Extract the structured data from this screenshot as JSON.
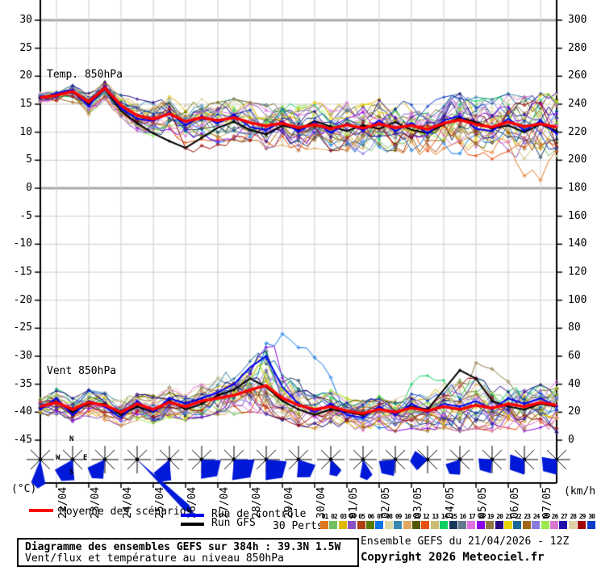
{
  "legend": {
    "mean_label": "Moyenne des scénarios",
    "control_label": "Run de contrôle",
    "gfs_label": "Run GFS",
    "perts_label": "30 Perts.",
    "mean_color": "#ff0000",
    "control_color": "#0000ee",
    "gfs_color": "#000000",
    "barb_color": "#0018d8"
  },
  "footer": {
    "title_line1": "Diagramme des ensembles GEFS sur 384h : 39.3N 1.5W",
    "title_line2": "Vent/flux et température au niveau 850hPa",
    "run_info": "Ensemble GEFS du 21/04/2026 - 12Z",
    "copyright": "Copyright 2026 Meteociel.fr"
  },
  "perturbations": [
    {
      "num": "01",
      "color": "#e07820"
    },
    {
      "num": "02",
      "color": "#70c060"
    },
    {
      "num": "03",
      "color": "#e0b800"
    },
    {
      "num": "04",
      "color": "#8850c0"
    },
    {
      "num": "05",
      "color": "#b04010"
    },
    {
      "num": "06",
      "color": "#587800"
    },
    {
      "num": "07",
      "color": "#0874e8"
    },
    {
      "num": "08",
      "color": "#ded8a4"
    },
    {
      "num": "09",
      "color": "#3888b0"
    },
    {
      "num": "10",
      "color": "#e0a860"
    },
    {
      "num": "11",
      "color": "#565600"
    },
    {
      "num": "12",
      "color": "#e85010"
    },
    {
      "num": "13",
      "color": "#ccbc74"
    },
    {
      "num": "14",
      "color": "#10d064"
    },
    {
      "num": "15",
      "color": "#16385c"
    },
    {
      "num": "16",
      "color": "#66788c"
    },
    {
      "num": "17",
      "color": "#e070e0"
    },
    {
      "num": "18",
      "color": "#8800e8"
    },
    {
      "num": "19",
      "color": "#8c7840"
    },
    {
      "num": "20",
      "color": "#2a0a84"
    },
    {
      "num": "21",
      "color": "#e8d400"
    },
    {
      "num": "22",
      "color": "#186898"
    },
    {
      "num": "23",
      "color": "#a06818"
    },
    {
      "num": "24",
      "color": "#8a7ae0"
    },
    {
      "num": "25",
      "color": "#9ce84e"
    },
    {
      "num": "26",
      "color": "#d878cc"
    },
    {
      "num": "27",
      "color": "#2012a8"
    },
    {
      "num": "28",
      "color": "#e0d0a8"
    },
    {
      "num": "29",
      "color": "#a00404"
    },
    {
      "num": "30",
      "color": "#0c3cc8"
    }
  ],
  "chart_data": {
    "type": "line",
    "title": "Diagramme des ensembles GEFS sur 384h : 39.3N 1.5W",
    "subtitle": "Vent/flux et température au niveau 850hPa",
    "run": "Ensemble GEFS du 21/04/2026 - 12Z",
    "members": 30,
    "x_axis": {
      "start": "21/04 12Z",
      "end": "07/05 12Z",
      "hours_total": 384,
      "step_h": 12,
      "date_labels": [
        "22/04",
        "23/04",
        "24/04",
        "25/04",
        "26/04",
        "27/04",
        "28/04",
        "29/04",
        "30/04",
        "01/05",
        "02/05",
        "03/05",
        "04/05",
        "05/05",
        "06/05",
        "07/05"
      ]
    },
    "y_left": {
      "label": "(°C)",
      "min": -45,
      "max": 30,
      "tick_step": 5,
      "ticks": [
        "30",
        "25",
        "20",
        "15",
        "10",
        "5",
        "0",
        "-5",
        "-10",
        "-15",
        "-20",
        "-25",
        "-30",
        "-35",
        "-40",
        "-45"
      ]
    },
    "y_right": {
      "label": "(km/h)",
      "min": 0,
      "max": 300,
      "tick_step": 20,
      "ticks": [
        "300",
        "280",
        "260",
        "240",
        "220",
        "200",
        "180",
        "160",
        "140",
        "120",
        "100",
        "80",
        "60",
        "40",
        "20",
        "0"
      ]
    },
    "compass": {
      "n": "N",
      "e": "E",
      "s": "S",
      "w": "W"
    },
    "temp": {
      "label": "Temp. 850hPa",
      "mean": [
        16.2,
        16.6,
        17.3,
        15.4,
        17.9,
        14.8,
        13.0,
        12.3,
        13.3,
        11.9,
        12.6,
        12.1,
        12.6,
        11.7,
        11.1,
        11.6,
        10.8,
        11.4,
        10.6,
        11.3,
        10.7,
        11.5,
        10.8,
        11.2,
        10.5,
        11.6,
        12.2,
        11.4,
        10.9,
        11.8,
        11.0,
        11.5,
        10.9
      ],
      "control": [
        16.0,
        16.9,
        17.6,
        14.6,
        18.2,
        14.2,
        12.4,
        12.0,
        13.6,
        11.2,
        12.9,
        11.6,
        13.1,
        10.9,
        10.4,
        11.9,
        10.1,
        11.8,
        9.9,
        11.6,
        10.3,
        12.1,
        10.2,
        11.7,
        9.8,
        12.1,
        12.9,
        10.6,
        10.2,
        12.4,
        10.3,
        12.0,
        9.7
      ],
      "gfs": [
        16.1,
        16.7,
        17.2,
        14.9,
        17.7,
        13.8,
        11.6,
        9.8,
        8.4,
        7.2,
        9.0,
        10.8,
        11.9,
        10.4,
        9.6,
        11.2,
        10.5,
        12.0,
        11.0,
        10.2,
        11.2,
        10.6,
        11.8,
        10.4,
        9.8,
        11.4,
        12.6,
        11.8,
        10.6,
        11.2,
        10.0,
        11.4,
        10.2
      ],
      "env_min": [
        15.2,
        15.6,
        15.2,
        12.8,
        15.6,
        12.2,
        10.2,
        9.2,
        9.6,
        8.0,
        8.6,
        8.0,
        8.6,
        7.6,
        7.0,
        7.6,
        6.6,
        7.0,
        6.6,
        6.6,
        6.0,
        6.6,
        6.0,
        6.0,
        5.6,
        6.0,
        6.0,
        5.6,
        5.0,
        5.4,
        4.8,
        5.2,
        4.2
      ],
      "env_max": [
        17.0,
        17.9,
        18.4,
        17.0,
        19.0,
        17.0,
        16.0,
        15.4,
        16.4,
        15.0,
        16.0,
        15.4,
        16.0,
        15.4,
        15.0,
        15.4,
        15.0,
        15.4,
        15.0,
        15.4,
        15.0,
        16.0,
        15.4,
        16.0,
        15.4,
        16.4,
        17.0,
        16.4,
        16.0,
        17.0,
        16.4,
        17.0,
        17.2
      ]
    },
    "wind": {
      "label": "Vent 850hPa",
      "mean": [
        24,
        27,
        22,
        27,
        25,
        20,
        26,
        22,
        27,
        24,
        28,
        30,
        32,
        36,
        39,
        30,
        25,
        22,
        24,
        21,
        19,
        22,
        20,
        23,
        21,
        24,
        22,
        25,
        23,
        26,
        24,
        27,
        25
      ],
      "control": [
        22,
        30,
        18,
        28,
        24,
        16,
        28,
        20,
        30,
        26,
        30,
        34,
        40,
        52,
        60,
        38,
        26,
        20,
        26,
        18,
        16,
        24,
        18,
        26,
        20,
        26,
        24,
        28,
        22,
        30,
        26,
        30,
        24
      ],
      "gfs": [
        23,
        28,
        20,
        26,
        26,
        18,
        24,
        20,
        28,
        22,
        26,
        32,
        36,
        44,
        38,
        28,
        22,
        18,
        22,
        20,
        18,
        22,
        20,
        24,
        22,
        36,
        50,
        44,
        28,
        24,
        22,
        26,
        24
      ],
      "env_min": [
        15,
        18,
        12,
        16,
        14,
        10,
        14,
        12,
        16,
        14,
        16,
        18,
        18,
        20,
        18,
        14,
        10,
        8,
        10,
        8,
        6,
        8,
        6,
        8,
        6,
        8,
        6,
        8,
        6,
        8,
        6,
        8,
        5
      ],
      "env_max": [
        32,
        38,
        30,
        36,
        34,
        28,
        36,
        32,
        38,
        36,
        40,
        46,
        55,
        66,
        70,
        55,
        40,
        32,
        36,
        30,
        28,
        32,
        30,
        34,
        32,
        42,
        52,
        48,
        38,
        40,
        36,
        40,
        42
      ]
    },
    "outliers": [
      {
        "series": "wind",
        "member": 6,
        "center_h": 190,
        "half_width_h": 28,
        "amplitude": 46
      },
      {
        "series": "wind",
        "member": 17,
        "center_h": 166,
        "half_width_h": 20,
        "amplitude": 24
      },
      {
        "series": "wind",
        "member": 14,
        "center_h": 174,
        "half_width_h": 22,
        "amplitude": 20
      },
      {
        "series": "wind",
        "member": 18,
        "center_h": 324,
        "half_width_h": 16,
        "amplitude": 26
      },
      {
        "series": "wind",
        "member": 13,
        "center_h": 282,
        "half_width_h": 14,
        "amplitude": 22
      },
      {
        "series": "temp",
        "member": 0,
        "center_h": 372,
        "half_width_h": 20,
        "amplitude": -4
      },
      {
        "series": "temp",
        "member": 28,
        "center_h": 120,
        "half_width_h": 16,
        "amplitude": -3
      }
    ],
    "wind_barbs": [
      {
        "a1": 78,
        "a2": 112,
        "r": 36
      },
      {
        "a1": 85,
        "a2": 150,
        "r": 30
      },
      {
        "a1": 95,
        "a2": 155,
        "r": 28
      },
      {
        "a1": 41,
        "a2": 47,
        "r": 100
      },
      {
        "a1": 85,
        "a2": 140,
        "r": 30
      },
      {
        "a1": 2,
        "a2": 92,
        "r": 28
      },
      {
        "a1": 0,
        "a2": 95,
        "r": 30
      },
      {
        "a1": 5,
        "a2": 92,
        "r": 30
      },
      {
        "a1": 18,
        "a2": 95,
        "r": 26
      },
      {
        "a1": 45,
        "a2": 95,
        "r": 22
      },
      {
        "a1": 58,
        "a2": 100,
        "r": 26
      },
      {
        "a1": 95,
        "a2": 175,
        "r": 24
      },
      {
        "a1": 135,
        "a2": 215,
        "r": 22
      },
      {
        "a1": 90,
        "a2": 162,
        "r": 22
      },
      {
        "a1": 95,
        "a2": 185,
        "r": 20
      },
      {
        "a1": 90,
        "a2": 200,
        "r": 22
      },
      {
        "a1": 90,
        "a2": 190,
        "r": 22
      }
    ]
  }
}
